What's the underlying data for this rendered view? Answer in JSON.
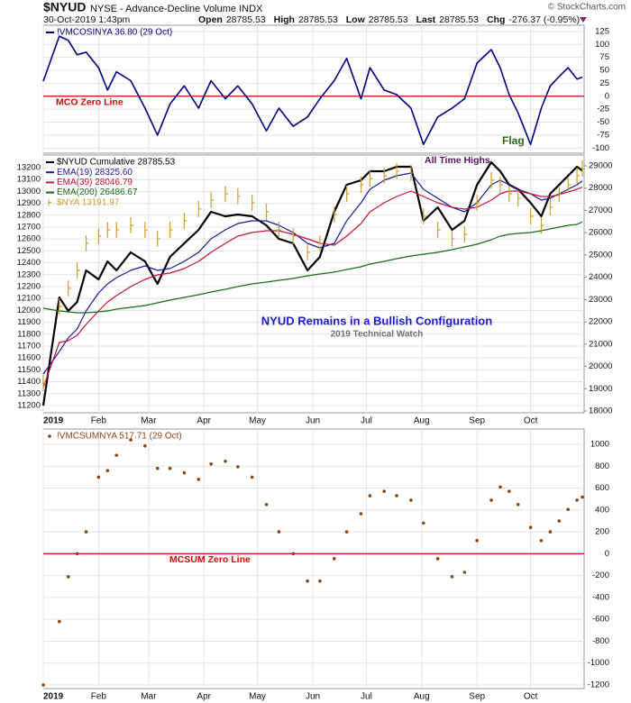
{
  "header": {
    "symbol": "$NYUD",
    "description": "NYSE - Advance-Decline Volume INDX",
    "datetime": "30-Oct-2019 1:43pm",
    "quote": [
      {
        "label": "Open",
        "value": "28785.53"
      },
      {
        "label": "High",
        "value": "28785.53"
      },
      {
        "label": "Low",
        "value": "28785.53"
      },
      {
        "label": "Last",
        "value": "28785.53"
      },
      {
        "label": "Chg",
        "value": "-276.37 (-0.95%)"
      }
    ],
    "watermark": "© StockCharts.com"
  },
  "chart_data": [
    {
      "type": "line",
      "grid": true,
      "x": [
        1,
        10,
        15,
        20,
        25,
        32,
        37,
        42,
        50,
        58,
        65,
        72,
        80,
        88,
        95,
        103,
        110,
        118,
        126,
        133,
        141,
        149,
        156,
        164,
        171,
        179,
        184,
        192,
        199,
        207,
        214,
        222,
        230,
        237,
        244,
        252,
        257,
        262,
        267,
        274,
        280,
        285,
        290,
        295,
        300,
        303
      ],
      "xlim": [
        1,
        304
      ],
      "ylim": [
        -110,
        137
      ],
      "yticks": [
        125,
        100,
        75,
        50,
        25,
        0,
        -25,
        -50,
        -75,
        -100
      ],
      "zero_line": {
        "value": 0,
        "label": "MCO Zero Line",
        "color": "#dd0000"
      },
      "annotations": [
        {
          "text": "Flag",
          "color": "#2a6a1a"
        }
      ],
      "series": [
        {
          "name": "!VMCOSINYA 36.80 (29 Oct)",
          "color": "#000080",
          "values": [
            29,
            116,
            108,
            80,
            85,
            55,
            12,
            47,
            30,
            -23,
            -75,
            -15,
            20,
            -23,
            30,
            -5,
            20,
            -15,
            -67,
            -23,
            -58,
            -40,
            -5,
            30,
            73,
            -5,
            55,
            12,
            3,
            -23,
            -93,
            -40,
            -23,
            -5,
            64,
            90,
            55,
            3,
            -32,
            -93,
            -23,
            20,
            38,
            55,
            33,
            36.8
          ]
        }
      ]
    },
    {
      "type": "line",
      "grid": true,
      "x": [
        1,
        10,
        15,
        20,
        25,
        32,
        37,
        42,
        50,
        58,
        65,
        72,
        80,
        88,
        95,
        103,
        110,
        118,
        126,
        133,
        141,
        149,
        156,
        164,
        171,
        179,
        184,
        192,
        199,
        207,
        214,
        222,
        230,
        237,
        244,
        252,
        257,
        262,
        267,
        274,
        280,
        285,
        290,
        295,
        300,
        303
      ],
      "xlim": [
        1,
        304
      ],
      "xticks": [
        {
          "value": 1,
          "label": "2019"
        },
        {
          "value": 32,
          "label": "Feb"
        },
        {
          "value": 60,
          "label": "Mar"
        },
        {
          "value": 91,
          "label": "Apr"
        },
        {
          "value": 121,
          "label": "May"
        },
        {
          "value": 152,
          "label": "Jun"
        },
        {
          "value": 182,
          "label": "Jul"
        },
        {
          "value": 213,
          "label": "Aug"
        },
        {
          "value": 244,
          "label": "Sep"
        },
        {
          "value": 274,
          "label": "Oct"
        }
      ],
      "ylim": [
        11139,
        13306
      ],
      "yticks": [
        13200,
        13100,
        13000,
        12900,
        12800,
        12700,
        12600,
        12500,
        12400,
        12300,
        12200,
        12100,
        12000,
        11900,
        11800,
        11700,
        11600,
        11500,
        11400,
        11300,
        11200
      ],
      "y2lim": [
        17919,
        29485
      ],
      "y2ticks": [
        29000,
        28000,
        27000,
        26000,
        25000,
        24000,
        23000,
        22000,
        21000,
        20000,
        19000,
        18000
      ],
      "annotations": [
        {
          "text": "All Time Highs",
          "color": "#5a1060"
        },
        {
          "text": "NYUD Remains in a Bullish Configuration",
          "color": "#1a1ad0"
        },
        {
          "text": "2019 Technical Watch",
          "color": "#707070"
        }
      ],
      "series": [
        {
          "name": "$NYUD Cumulative 28785.53",
          "color": "#000000",
          "axis": "y2",
          "values": [
            18243,
            23096,
            22489,
            22894,
            24309,
            23905,
            24713,
            24309,
            25118,
            24713,
            23702,
            24916,
            25522,
            26129,
            26938,
            26735,
            26816,
            26735,
            26331,
            25724,
            25522,
            24309,
            24916,
            26938,
            28151,
            28353,
            28757,
            28757,
            28960,
            28960,
            26533,
            27140,
            26129,
            26533,
            28151,
            29162,
            28757,
            28151,
            27949,
            27342,
            26735,
            27746,
            28151,
            28555,
            28960,
            28785.53
          ]
        },
        {
          "name": "EMA(19) 28325.60",
          "color": "#1a1a9a",
          "axis": "y2",
          "values": [
            19658,
            20669,
            21276,
            21680,
            22489,
            23298,
            23702,
            23985,
            24309,
            24511,
            24309,
            24390,
            24713,
            25118,
            25724,
            26129,
            26412,
            26533,
            26533,
            26331,
            26007,
            25522,
            25320,
            25522,
            26533,
            27342,
            27949,
            28353,
            28555,
            28676,
            27949,
            27544,
            27140,
            26938,
            27342,
            28151,
            28353,
            28151,
            27949,
            27746,
            27463,
            27544,
            27746,
            27949,
            28151,
            28325.6
          ]
        },
        {
          "name": "EMA(39) 28046.79",
          "color": "#c8103a",
          "axis": "y2",
          "values": [
            19052,
            21074,
            21155,
            21397,
            21883,
            22489,
            22894,
            23177,
            23581,
            23905,
            24107,
            24188,
            24390,
            24713,
            25118,
            25522,
            25846,
            26007,
            26088,
            26088,
            25927,
            25724,
            25522,
            25441,
            25846,
            26412,
            26938,
            27342,
            27625,
            27868,
            27625,
            27342,
            27140,
            27059,
            27140,
            27463,
            27746,
            27868,
            27868,
            27746,
            27625,
            27625,
            27706,
            27827,
            27949,
            28046.79
          ]
        },
        {
          "name": "EMA(200) 26486.67",
          "color": "#1a6a1a",
          "axis": "y2",
          "values": [
            22610,
            22489,
            22449,
            22408,
            22408,
            22449,
            22489,
            22570,
            22651,
            22732,
            22853,
            22974,
            23096,
            23217,
            23338,
            23460,
            23581,
            23702,
            23783,
            23864,
            23945,
            24066,
            24147,
            24228,
            24349,
            24471,
            24592,
            24713,
            24835,
            24956,
            25037,
            25118,
            25239,
            25360,
            25482,
            25684,
            25846,
            25927,
            25967,
            26007,
            26088,
            26169,
            26250,
            26331,
            26371,
            26486.67
          ]
        },
        {
          "name": "$NYA 13191.97",
          "color": "#c8a030",
          "style": "bar",
          "values": [
            11389,
            12033,
            12185,
            12336,
            12564,
            12624,
            12677,
            12677,
            12715,
            12677,
            12602,
            12677,
            12753,
            12852,
            12927,
            12980,
            12958,
            12905,
            12829,
            12677,
            12624,
            12488,
            12564,
            12806,
            12980,
            13056,
            13109,
            13132,
            13170,
            13155,
            12791,
            12677,
            12602,
            12639,
            12905,
            13094,
            13056,
            12980,
            12942,
            12791,
            12715,
            12867,
            12980,
            13056,
            13132,
            13191.97
          ]
        }
      ]
    },
    {
      "type": "scatter",
      "grid": true,
      "x": [
        1,
        10,
        15,
        20,
        25,
        32,
        37,
        42,
        50,
        58,
        65,
        72,
        80,
        88,
        95,
        103,
        110,
        118,
        126,
        133,
        141,
        149,
        156,
        164,
        171,
        179,
        184,
        192,
        199,
        207,
        214,
        222,
        230,
        237,
        244,
        252,
        257,
        262,
        267,
        274,
        280,
        285,
        290,
        295,
        300,
        303
      ],
      "xlim": [
        1,
        304
      ],
      "xticks": [
        {
          "value": 1,
          "label": "2019"
        },
        {
          "value": 32,
          "label": "Feb"
        },
        {
          "value": 60,
          "label": "Mar"
        },
        {
          "value": 91,
          "label": "Apr"
        },
        {
          "value": 121,
          "label": "May"
        },
        {
          "value": 152,
          "label": "Jun"
        },
        {
          "value": 182,
          "label": "Jul"
        },
        {
          "value": 213,
          "label": "Aug"
        },
        {
          "value": 244,
          "label": "Sep"
        },
        {
          "value": 274,
          "label": "Oct"
        }
      ],
      "ylim": [
        -1233,
        1140
      ],
      "yticks": [
        1000,
        800,
        600,
        400,
        200,
        0,
        -200,
        -400,
        -600,
        -800,
        -1000,
        -1200
      ],
      "zero_line": {
        "value": 0,
        "label": "MCSUM Zero Line",
        "color": "#dd0000"
      },
      "series": [
        {
          "name": "!VMCSUMNYA 517.71 (29 Oct)",
          "color": "#8b4513",
          "values": [
            -1200,
            -620,
            -211,
            0,
            200,
            700,
            760,
            900,
            1040,
            985,
            780,
            780,
            740,
            680,
            820,
            845,
            795,
            700,
            450,
            200,
            0,
            -250,
            -250,
            -45,
            200,
            365,
            530,
            570,
            530,
            490,
            280,
            -45,
            -210,
            -170,
            120,
            490,
            610,
            570,
            450,
            240,
            120,
            200,
            300,
            405,
            490,
            517.71
          ]
        }
      ]
    }
  ]
}
